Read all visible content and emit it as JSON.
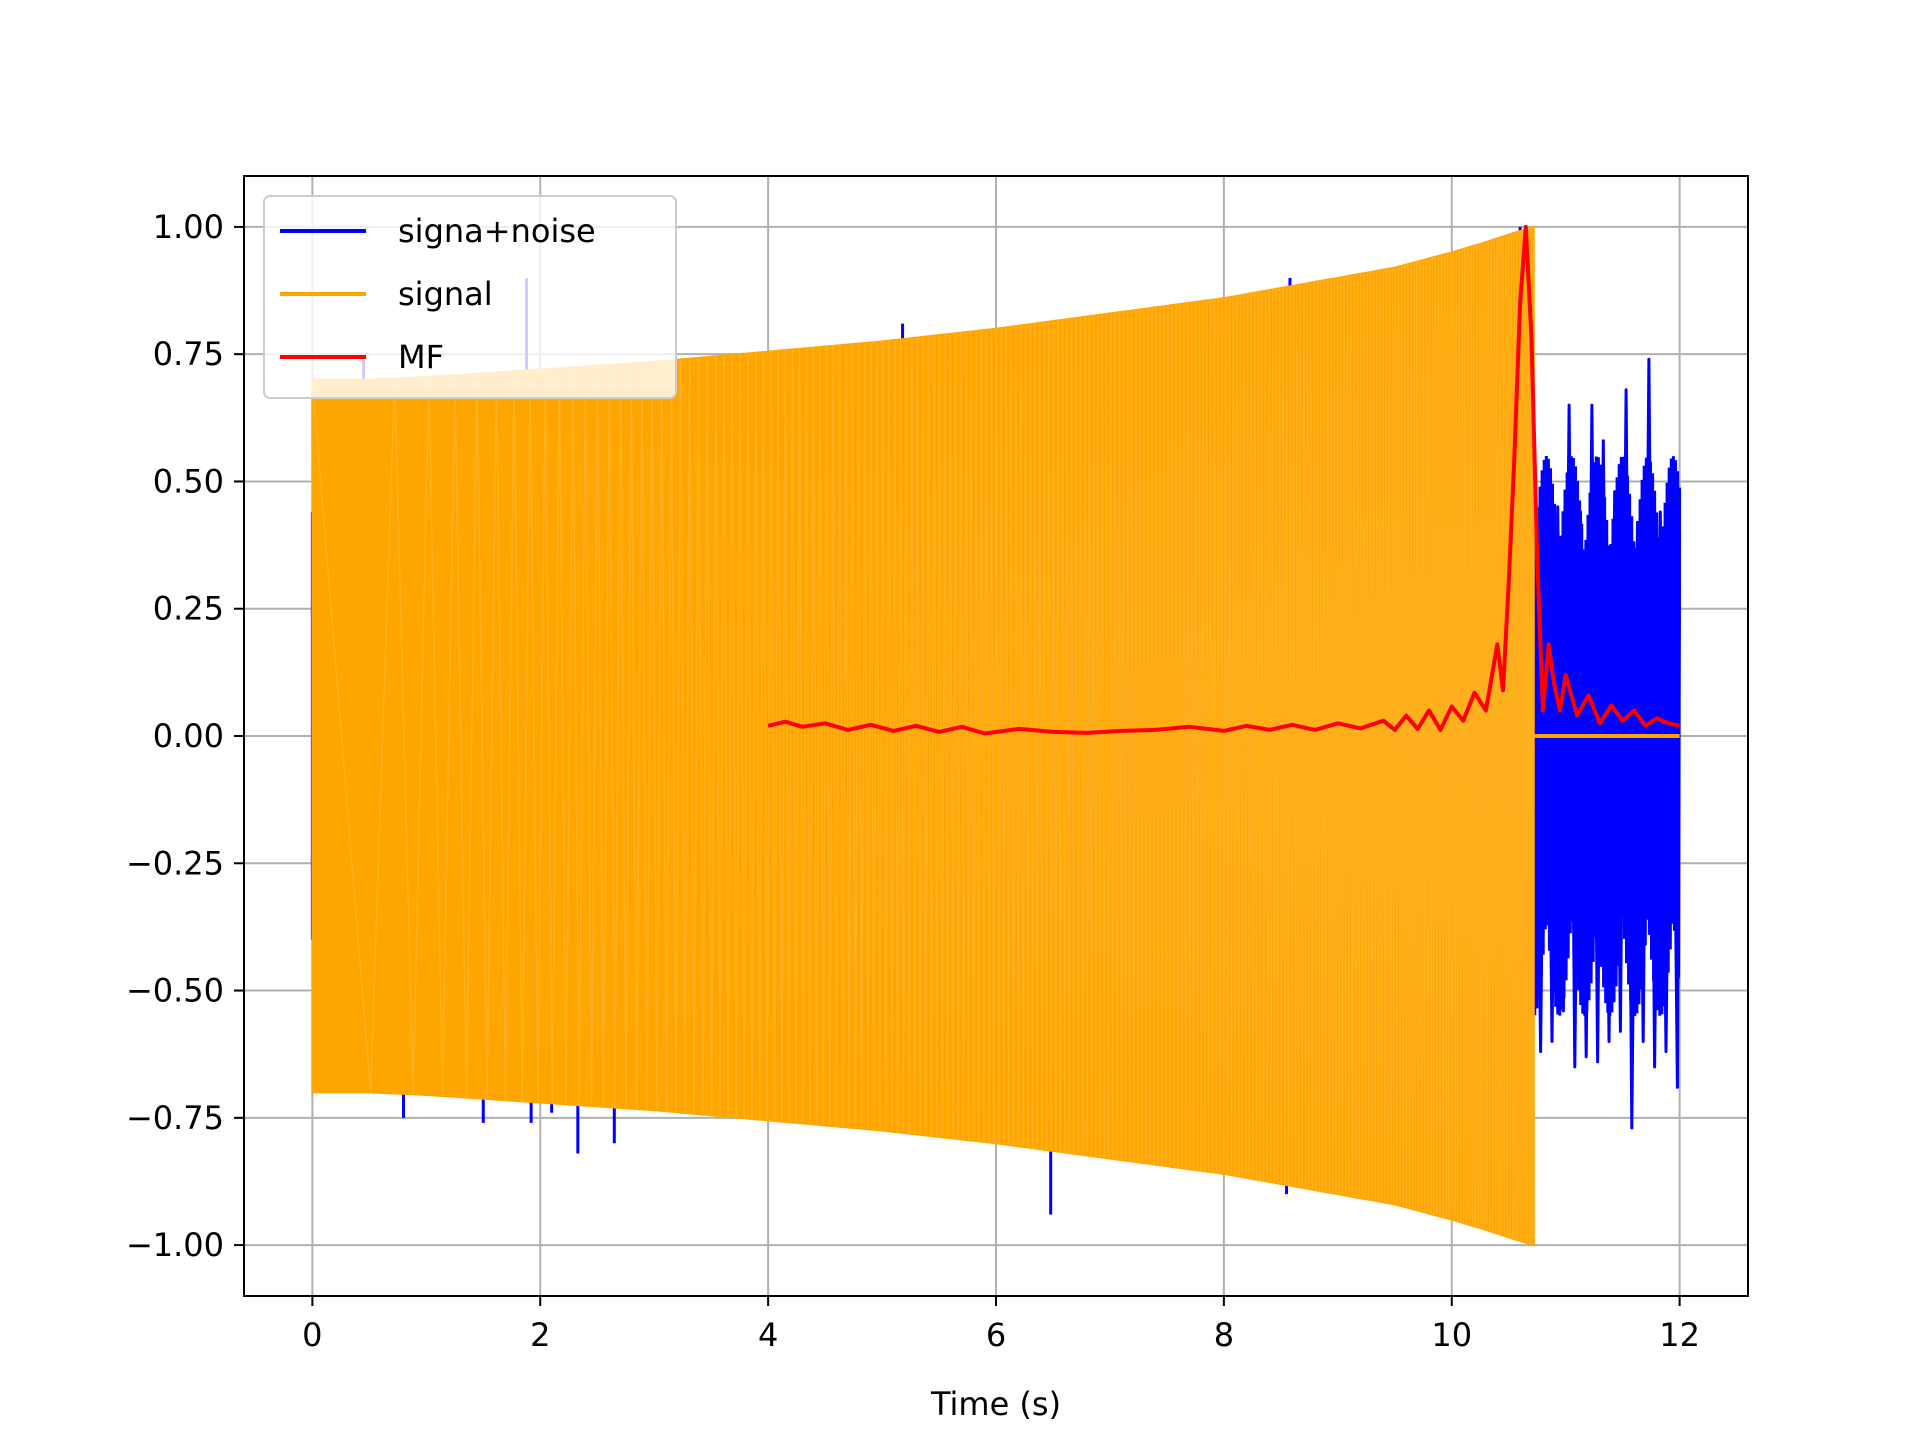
{
  "chart_data": {
    "type": "line",
    "title": "",
    "xlabel": "Time (s)",
    "ylabel": "",
    "xlim": [
      -0.6,
      12.6
    ],
    "ylim": [
      -1.1,
      1.1
    ],
    "grid": true,
    "legend_position": "top-left",
    "x_ticks": [
      0,
      2,
      4,
      6,
      8,
      10,
      12
    ],
    "x_tick_labels": [
      "0",
      "2",
      "4",
      "6",
      "8",
      "10",
      "12"
    ],
    "y_ticks": [
      1.0,
      0.75,
      0.5,
      0.25,
      0.0,
      -0.25,
      -0.5,
      -0.75,
      -1.0
    ],
    "y_tick_labels": [
      "1.00",
      "0.75",
      "0.50",
      "0.25",
      "0.00",
      "−0.25",
      "−0.50",
      "−0.75",
      "−1.00"
    ],
    "series": [
      {
        "name": "signa+noise",
        "color": "#0000ff",
        "x_range": [
          0,
          12
        ],
        "spikes": [
          [
            0.0,
            0.44
          ],
          [
            0.0,
            -0.4
          ],
          [
            0.2,
            0.62
          ],
          [
            0.2,
            -0.68
          ],
          [
            0.45,
            0.74
          ],
          [
            0.45,
            -0.7
          ],
          [
            0.8,
            0.56
          ],
          [
            0.8,
            -0.75
          ],
          [
            1.0,
            0.68
          ],
          [
            1.2,
            -0.62
          ],
          [
            1.5,
            0.64
          ],
          [
            1.5,
            -0.76
          ],
          [
            1.88,
            0.9
          ],
          [
            1.92,
            -0.76
          ],
          [
            2.0,
            0.66
          ],
          [
            2.1,
            -0.74
          ],
          [
            2.3,
            0.72
          ],
          [
            2.33,
            -0.82
          ],
          [
            2.65,
            0.68
          ],
          [
            2.65,
            -0.8
          ],
          [
            2.9,
            0.72
          ],
          [
            3.2,
            -0.7
          ],
          [
            3.5,
            0.68
          ],
          [
            4.2,
            -0.74
          ],
          [
            5.18,
            0.81
          ],
          [
            5.18,
            -0.78
          ],
          [
            5.5,
            0.72
          ],
          [
            6.0,
            -0.8
          ],
          [
            6.48,
            0.76
          ],
          [
            6.48,
            -0.94
          ],
          [
            7.0,
            0.72
          ],
          [
            7.03,
            -0.82
          ],
          [
            7.6,
            0.74
          ],
          [
            8.2,
            -0.84
          ],
          [
            8.58,
            0.9
          ],
          [
            8.55,
            -0.9
          ],
          [
            9.0,
            0.8
          ],
          [
            9.5,
            -0.9
          ],
          [
            10.5,
            0.98
          ],
          [
            10.6,
            1.0
          ]
        ],
        "tail_x": [
          10.72,
          10.78,
          10.83,
          10.88,
          10.93,
          10.98,
          11.03,
          11.08,
          11.13,
          11.18,
          11.23,
          11.28,
          11.33,
          11.38,
          11.43,
          11.48,
          11.53,
          11.58,
          11.63,
          11.68,
          11.73,
          11.78,
          11.83,
          11.88,
          11.93,
          11.98,
          12.0
        ],
        "tail_y": [
          0.45,
          -0.62,
          0.48,
          -0.6,
          0.45,
          -0.54,
          0.65,
          -0.65,
          0.44,
          -0.63,
          0.65,
          -0.64,
          0.58,
          -0.6,
          0.48,
          -0.58,
          0.68,
          -0.77,
          0.42,
          -0.6,
          0.74,
          -0.65,
          0.44,
          -0.62,
          0.41,
          -0.69,
          0.4
        ]
      },
      {
        "name": "signal",
        "color": "#ffa500",
        "envelope_x": [
          0,
          0.5,
          1,
          2,
          3,
          4,
          5,
          6,
          7,
          8,
          9,
          9.5,
          10,
          10.3,
          10.5,
          10.72
        ],
        "envelope_amplitude": [
          0.7,
          0.7,
          0.705,
          0.72,
          0.735,
          0.755,
          0.775,
          0.8,
          0.83,
          0.86,
          0.9,
          0.92,
          0.95,
          0.97,
          0.985,
          1.0
        ],
        "signal_end_x": 10.72,
        "post_signal_value": 0.0
      },
      {
        "name": "MF",
        "color": "#ff0000",
        "x": [
          4.0,
          4.15,
          4.3,
          4.5,
          4.7,
          4.9,
          5.1,
          5.3,
          5.5,
          5.7,
          5.9,
          6.2,
          6.5,
          6.8,
          7.1,
          7.4,
          7.7,
          8.0,
          8.2,
          8.4,
          8.6,
          8.8,
          9.0,
          9.2,
          9.4,
          9.5,
          9.6,
          9.7,
          9.8,
          9.9,
          10.0,
          10.1,
          10.2,
          10.3,
          10.4,
          10.45,
          10.5,
          10.55,
          10.6,
          10.65,
          10.7,
          10.75,
          10.8,
          10.85,
          10.9,
          10.95,
          11.0,
          11.1,
          11.2,
          11.3,
          11.4,
          11.5,
          11.6,
          11.7,
          11.8,
          11.9,
          12.0
        ],
        "y": [
          0.02,
          0.028,
          0.018,
          0.025,
          0.012,
          0.022,
          0.01,
          0.02,
          0.008,
          0.018,
          0.005,
          0.014,
          0.008,
          0.006,
          0.01,
          0.012,
          0.018,
          0.01,
          0.02,
          0.012,
          0.022,
          0.012,
          0.025,
          0.015,
          0.03,
          0.012,
          0.04,
          0.014,
          0.05,
          0.012,
          0.058,
          0.03,
          0.085,
          0.05,
          0.18,
          0.09,
          0.3,
          0.55,
          0.85,
          1.0,
          0.78,
          0.35,
          0.05,
          0.18,
          0.1,
          0.05,
          0.12,
          0.04,
          0.08,
          0.025,
          0.06,
          0.03,
          0.05,
          0.02,
          0.035,
          0.025,
          0.02
        ]
      }
    ]
  }
}
